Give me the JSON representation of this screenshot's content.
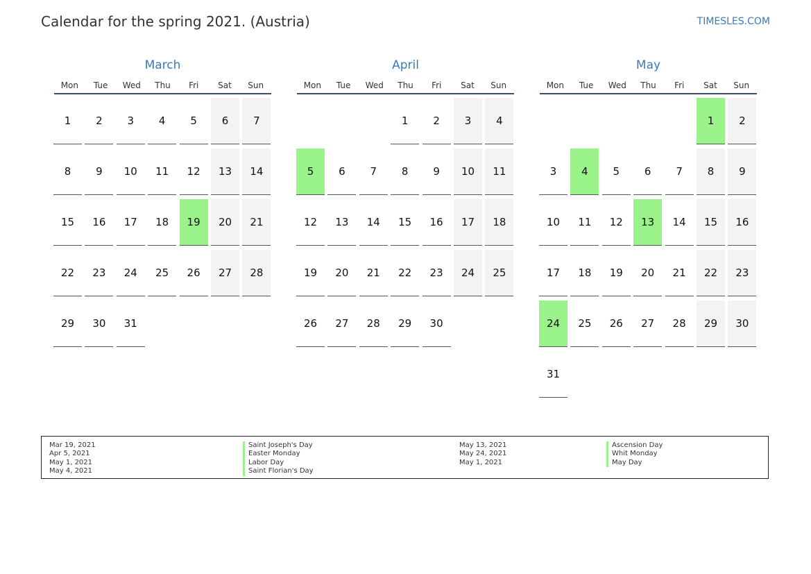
{
  "title": "Calendar for the spring 2021. (Austria)",
  "brand": "TIMESLES.COM",
  "weekdays": [
    "Mon",
    "Tue",
    "Wed",
    "Thu",
    "Fri",
    "Sat",
    "Sun"
  ],
  "colors": {
    "accent": "#3a7ab8",
    "holiday": "#99f38a",
    "weekend": "#f3f3f3"
  },
  "months": [
    {
      "name": "March",
      "start_weekday": 0,
      "days": 31,
      "holidays": [
        19
      ]
    },
    {
      "name": "April",
      "start_weekday": 3,
      "days": 30,
      "holidays": [
        5
      ]
    },
    {
      "name": "May",
      "start_weekday": 5,
      "days": 31,
      "holidays": [
        1,
        4,
        13,
        24
      ]
    }
  ],
  "legend": {
    "col1_dates": [
      "Mar 19, 2021",
      "Apr 5, 2021",
      "May 1, 2021",
      "May 4, 2021"
    ],
    "col1_names": [
      "Saint Joseph's Day",
      "Easter Monday",
      "Labor Day",
      "Saint Florian's Day"
    ],
    "col2_dates": [
      "May 13, 2021",
      "May 24, 2021",
      "May 1, 2021"
    ],
    "col2_names": [
      "Ascension Day",
      "Whit Monday",
      "May Day"
    ]
  }
}
